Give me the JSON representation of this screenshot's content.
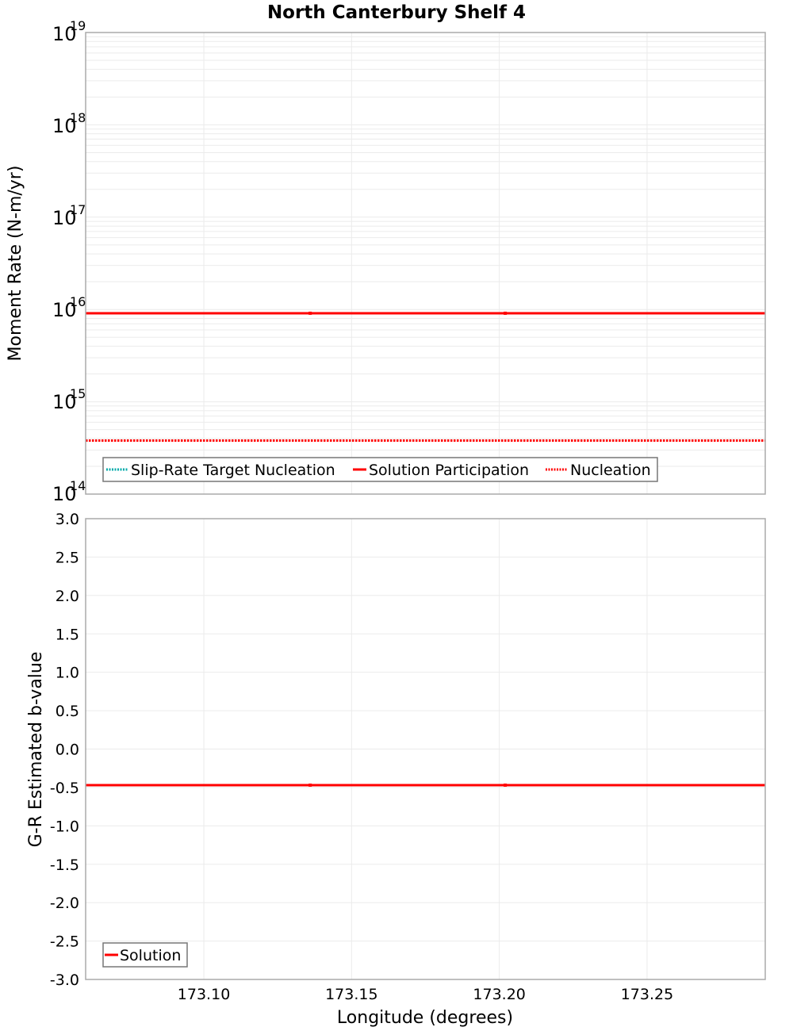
{
  "chart_data": [
    {
      "type": "line",
      "title": "North Canterbury Shelf 4",
      "xlabel": "Longitude (degrees)",
      "ylabel": "Moment Rate (N-m/yr)",
      "yscale": "log",
      "ylim": [
        100000000000000.0,
        1e+19
      ],
      "xlim": [
        173.06,
        173.29
      ],
      "grid": true,
      "legend_position": "lower left",
      "y_ticks": [
        {
          "base": "10",
          "exp": "19",
          "value": 1e+19
        },
        {
          "base": "10",
          "exp": "18",
          "value": 1e+18
        },
        {
          "base": "10",
          "exp": "17",
          "value": 1e+17
        },
        {
          "base": "10",
          "exp": "16",
          "value": 1e+16
        },
        {
          "base": "10",
          "exp": "15",
          "value": 1000000000000000.0
        },
        {
          "base": "10",
          "exp": "14",
          "value": 100000000000000.0
        }
      ],
      "x": [
        173.06,
        173.136,
        173.202,
        173.29
      ],
      "series": [
        {
          "name": "Slip-Rate Target Nucleation",
          "color": "#00aaaa",
          "style": "dotted",
          "values": []
        },
        {
          "name": "Solution Participation",
          "color": "#ff0000",
          "style": "solid",
          "values": [
            9100000000000000.0,
            9100000000000000.0,
            9100000000000000.0,
            9100000000000000.0
          ]
        },
        {
          "name": "Nucleation",
          "color": "#ff0000",
          "style": "dotted",
          "values": [
            380000000000000.0,
            380000000000000.0,
            380000000000000.0,
            380000000000000.0
          ]
        }
      ]
    },
    {
      "type": "line",
      "title": "",
      "xlabel": "Longitude (degrees)",
      "ylabel": "G-R Estimated b-value",
      "ylim": [
        -3.0,
        3.0
      ],
      "xlim": [
        173.06,
        173.29
      ],
      "grid": true,
      "legend_position": "lower left",
      "y_ticks": [
        "3.0",
        "2.5",
        "2.0",
        "1.5",
        "1.0",
        "0.5",
        "0.0",
        "-0.5",
        "-1.0",
        "-1.5",
        "-2.0",
        "-2.5",
        "-3.0"
      ],
      "x_ticks": [
        "173.10",
        "173.15",
        "173.20",
        "173.25"
      ],
      "x": [
        173.06,
        173.136,
        173.202,
        173.29
      ],
      "series": [
        {
          "name": "Solution",
          "color": "#ff0000",
          "style": "solid",
          "values": [
            -0.47,
            -0.47,
            -0.47,
            -0.47
          ]
        }
      ]
    }
  ],
  "colors": {
    "solution": "#ff0000",
    "target": "#00aaaa",
    "grid": "#ebebeb",
    "frame": "#aaaaaa",
    "legend_border": "#777777"
  }
}
